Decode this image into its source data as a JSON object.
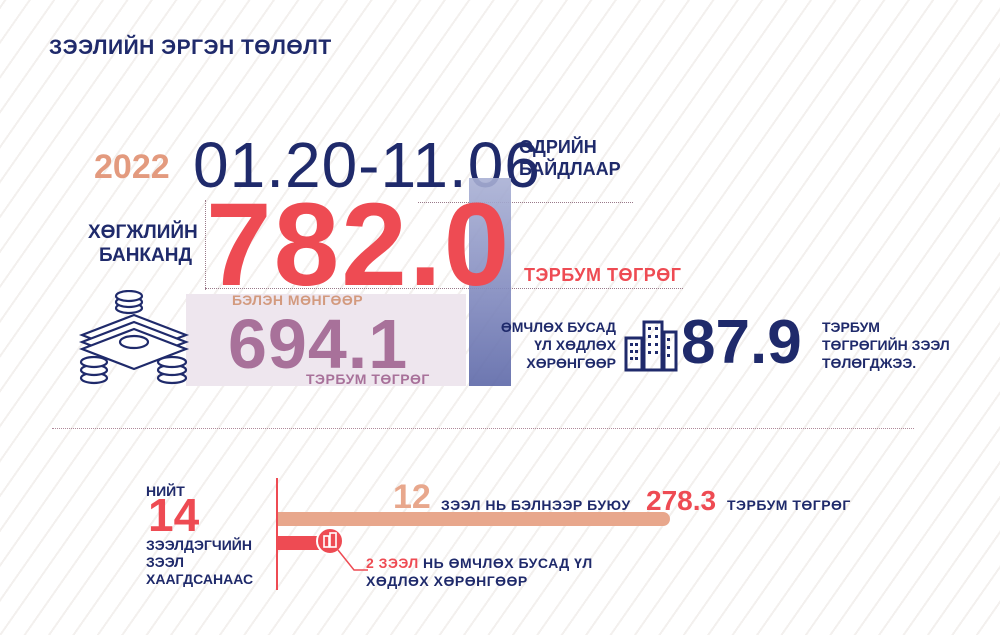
{
  "title": "ЗЭЭЛИЙН ЭРГЭН ТӨЛӨЛТ",
  "period": {
    "year": "2022",
    "dates": "01.20-11.06",
    "suffix_line1": "ӨДРИЙН",
    "suffix_line2": "БАЙДЛААР"
  },
  "bank": {
    "label_line1": "ХӨГЖЛИЙН",
    "label_line2": "БАНКАНД",
    "total_value": "782.0",
    "total_unit": "ТЭРБУМ ТӨГРӨГ"
  },
  "cash": {
    "label": "БЭЛЭН МӨНГӨӨР",
    "value": "694.1",
    "unit": "ТЭРБУМ ТӨГРӨГ"
  },
  "assets": {
    "label_line1": "ӨМЧЛӨХ БУСАД",
    "label_line2": "ҮЛ ХӨДЛӨХ",
    "label_line3": "ХӨРӨНГӨӨР",
    "value": "87.9",
    "unit_line1": "ТЭРБУМ",
    "unit_line2": "ТӨГРӨГИЙН ЗЭЭЛ",
    "unit_line3": "ТӨЛӨГДЖЭЭ."
  },
  "borrowers": {
    "total_label": "НИЙТ",
    "total_value": "14",
    "desc_line1": "ЗЭЭЛДЭГЧИЙН",
    "desc_line2": "ЗЭЭЛ",
    "desc_line3": "ХААГДСАНААС"
  },
  "cash_loans": {
    "count": "12",
    "text": "ЗЭЭЛ НЬ БЭЛНЭЭР БУЮУ",
    "value": "278.3",
    "unit": "ТЭРБУМ ТӨГРӨГ"
  },
  "asset_loans": {
    "count_text": "2 ЗЭЭЛ",
    "text_line1": "НЬ ӨМЧЛӨХ БУСАД ҮЛ",
    "text_line2": "ХӨДЛӨХ ХӨРӨНГӨӨР"
  },
  "colors": {
    "navy": "#1f2a6b",
    "red": "#ee4b53",
    "peach": "#e39a7e",
    "mauve": "#a8719a"
  },
  "icons": [
    "money-stack-icon",
    "buildings-icon",
    "building-badge-icon"
  ]
}
